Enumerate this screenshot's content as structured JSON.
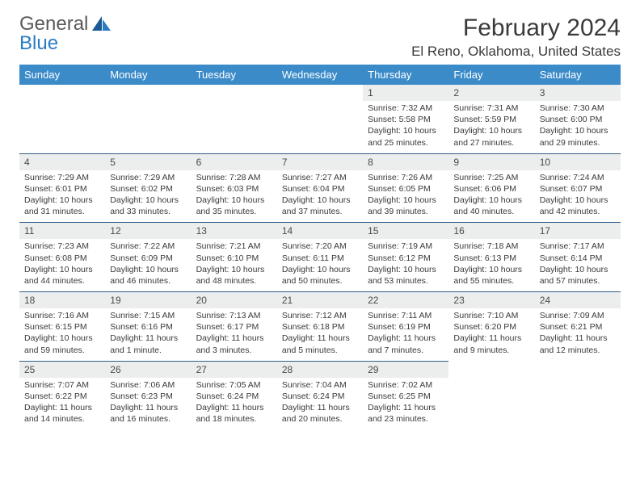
{
  "logo": {
    "line1": "General",
    "line2": "Blue"
  },
  "title": "February 2024",
  "location": "El Reno, Oklahoma, United States",
  "colors": {
    "header_bg": "#3b8bc9",
    "header_fg": "#ffffff",
    "daynum_bg": "#eceded",
    "border": "#2f5f8a",
    "logo_gray": "#5a5a5a",
    "logo_blue": "#2b7cc0"
  },
  "weekdays": [
    "Sunday",
    "Monday",
    "Tuesday",
    "Wednesday",
    "Thursday",
    "Friday",
    "Saturday"
  ],
  "weeks": [
    [
      null,
      null,
      null,
      null,
      {
        "n": "1",
        "sr": "7:32 AM",
        "ss": "5:58 PM",
        "dl": "10 hours and 25 minutes."
      },
      {
        "n": "2",
        "sr": "7:31 AM",
        "ss": "5:59 PM",
        "dl": "10 hours and 27 minutes."
      },
      {
        "n": "3",
        "sr": "7:30 AM",
        "ss": "6:00 PM",
        "dl": "10 hours and 29 minutes."
      }
    ],
    [
      {
        "n": "4",
        "sr": "7:29 AM",
        "ss": "6:01 PM",
        "dl": "10 hours and 31 minutes."
      },
      {
        "n": "5",
        "sr": "7:29 AM",
        "ss": "6:02 PM",
        "dl": "10 hours and 33 minutes."
      },
      {
        "n": "6",
        "sr": "7:28 AM",
        "ss": "6:03 PM",
        "dl": "10 hours and 35 minutes."
      },
      {
        "n": "7",
        "sr": "7:27 AM",
        "ss": "6:04 PM",
        "dl": "10 hours and 37 minutes."
      },
      {
        "n": "8",
        "sr": "7:26 AM",
        "ss": "6:05 PM",
        "dl": "10 hours and 39 minutes."
      },
      {
        "n": "9",
        "sr": "7:25 AM",
        "ss": "6:06 PM",
        "dl": "10 hours and 40 minutes."
      },
      {
        "n": "10",
        "sr": "7:24 AM",
        "ss": "6:07 PM",
        "dl": "10 hours and 42 minutes."
      }
    ],
    [
      {
        "n": "11",
        "sr": "7:23 AM",
        "ss": "6:08 PM",
        "dl": "10 hours and 44 minutes."
      },
      {
        "n": "12",
        "sr": "7:22 AM",
        "ss": "6:09 PM",
        "dl": "10 hours and 46 minutes."
      },
      {
        "n": "13",
        "sr": "7:21 AM",
        "ss": "6:10 PM",
        "dl": "10 hours and 48 minutes."
      },
      {
        "n": "14",
        "sr": "7:20 AM",
        "ss": "6:11 PM",
        "dl": "10 hours and 50 minutes."
      },
      {
        "n": "15",
        "sr": "7:19 AM",
        "ss": "6:12 PM",
        "dl": "10 hours and 53 minutes."
      },
      {
        "n": "16",
        "sr": "7:18 AM",
        "ss": "6:13 PM",
        "dl": "10 hours and 55 minutes."
      },
      {
        "n": "17",
        "sr": "7:17 AM",
        "ss": "6:14 PM",
        "dl": "10 hours and 57 minutes."
      }
    ],
    [
      {
        "n": "18",
        "sr": "7:16 AM",
        "ss": "6:15 PM",
        "dl": "10 hours and 59 minutes."
      },
      {
        "n": "19",
        "sr": "7:15 AM",
        "ss": "6:16 PM",
        "dl": "11 hours and 1 minute."
      },
      {
        "n": "20",
        "sr": "7:13 AM",
        "ss": "6:17 PM",
        "dl": "11 hours and 3 minutes."
      },
      {
        "n": "21",
        "sr": "7:12 AM",
        "ss": "6:18 PM",
        "dl": "11 hours and 5 minutes."
      },
      {
        "n": "22",
        "sr": "7:11 AM",
        "ss": "6:19 PM",
        "dl": "11 hours and 7 minutes."
      },
      {
        "n": "23",
        "sr": "7:10 AM",
        "ss": "6:20 PM",
        "dl": "11 hours and 9 minutes."
      },
      {
        "n": "24",
        "sr": "7:09 AM",
        "ss": "6:21 PM",
        "dl": "11 hours and 12 minutes."
      }
    ],
    [
      {
        "n": "25",
        "sr": "7:07 AM",
        "ss": "6:22 PM",
        "dl": "11 hours and 14 minutes."
      },
      {
        "n": "26",
        "sr": "7:06 AM",
        "ss": "6:23 PM",
        "dl": "11 hours and 16 minutes."
      },
      {
        "n": "27",
        "sr": "7:05 AM",
        "ss": "6:24 PM",
        "dl": "11 hours and 18 minutes."
      },
      {
        "n": "28",
        "sr": "7:04 AM",
        "ss": "6:24 PM",
        "dl": "11 hours and 20 minutes."
      },
      {
        "n": "29",
        "sr": "7:02 AM",
        "ss": "6:25 PM",
        "dl": "11 hours and 23 minutes."
      },
      null,
      null
    ]
  ],
  "labels": {
    "sunrise": "Sunrise:",
    "sunset": "Sunset:",
    "daylight": "Daylight:"
  }
}
